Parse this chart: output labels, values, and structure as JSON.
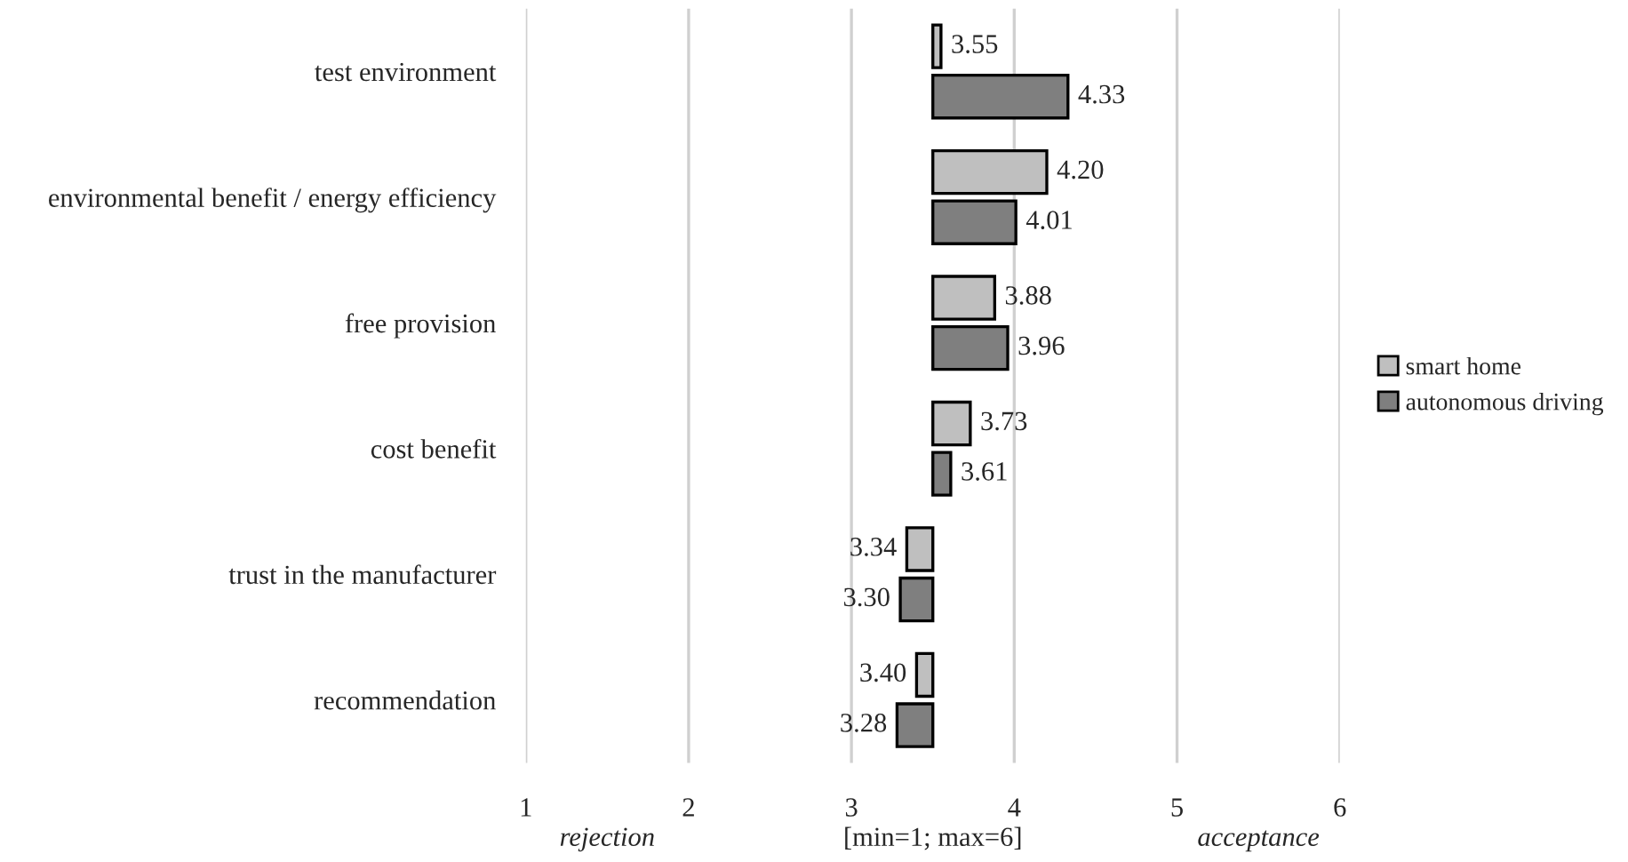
{
  "chart_data": {
    "type": "bar",
    "orientation": "horizontal",
    "categories": [
      "test environment",
      "environmental benefit / energy efficiency",
      "free provision",
      "cost benefit",
      "trust in the manufacturer",
      "recommendation"
    ],
    "series": [
      {
        "name": "smart home",
        "color": "#bfbfbf",
        "base": [
          3.5,
          3.5,
          3.5,
          3.5,
          3.5,
          3.5
        ],
        "values": [
          0.05,
          0.7,
          0.38,
          0.23,
          -0.16,
          -0.1
        ],
        "value_labels": [
          "3.55",
          "4.20",
          "3.88",
          "3.73",
          "3.34",
          "3.40"
        ]
      },
      {
        "name": "autonomous driving",
        "color": "#7f7f7f",
        "base": [
          3.5,
          3.5,
          3.5,
          3.5,
          3.5,
          3.5
        ],
        "values": [
          0.83,
          0.51,
          0.46,
          0.11,
          -0.2,
          -0.22
        ],
        "value_labels": [
          "4.33",
          "4.01",
          "3.96",
          "3.61",
          "3.30",
          "3.28"
        ]
      }
    ],
    "xlim": [
      1,
      6
    ],
    "xticks": [
      1,
      2,
      3,
      4,
      5,
      6
    ],
    "grid": "x",
    "legend": "right",
    "annotations": [
      "rejection",
      "[min=1; max=6]",
      "acceptance"
    ]
  }
}
